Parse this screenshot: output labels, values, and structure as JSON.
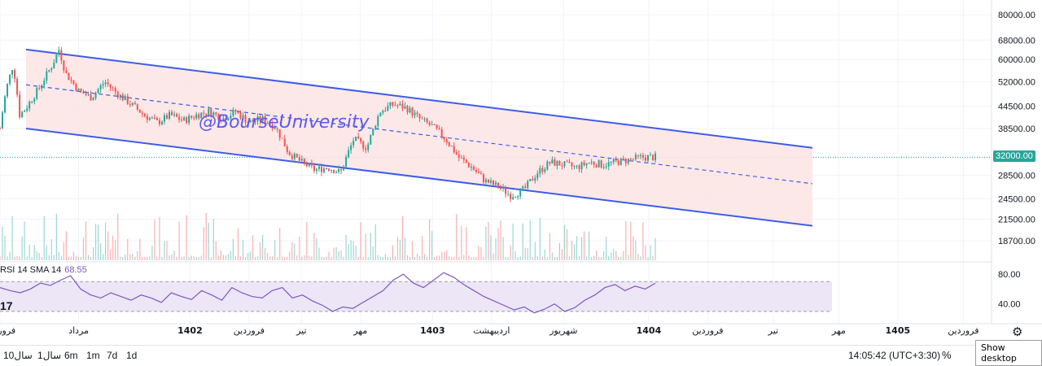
{
  "chart_data": {
    "type": "candlestick",
    "watermark": "@BourseUniversity",
    "y_ticks": [
      "80000.00",
      "68000.00",
      "60000.00",
      "52000.00",
      "44500.00",
      "38500.00",
      "32000.00",
      "28500.00",
      "24500.00",
      "21500.00",
      "18700.00"
    ],
    "y_tick_values": [
      80000,
      68000,
      60000,
      52000,
      44500,
      38500,
      32000,
      28500,
      24500,
      21500,
      18700
    ],
    "y_scale": "log",
    "ylim": [
      16500,
      88000
    ],
    "last_price": "32000.00",
    "price_path": {
      "t": [
        0,
        0.01,
        0.02,
        0.03,
        0.04,
        0.06,
        0.08,
        0.09,
        0.1,
        0.12,
        0.14,
        0.16,
        0.18,
        0.2,
        0.22,
        0.24,
        0.26,
        0.28,
        0.3,
        0.32,
        0.34,
        0.36,
        0.38,
        0.4,
        0.42,
        0.44,
        0.46,
        0.48,
        0.5,
        0.52,
        0.54,
        0.56,
        0.58,
        0.6,
        0.62,
        0.64,
        0.66,
        0.68,
        0.7,
        0.72,
        0.74,
        0.76,
        0.78,
        0.8,
        0.82,
        0.84,
        0.86,
        0.88,
        0.9,
        0.92,
        0.94,
        0.96,
        0.98,
        1.0
      ],
      "price": [
        38500,
        50000,
        58000,
        42000,
        44000,
        50000,
        58000,
        64000,
        55000,
        49000,
        47000,
        52000,
        48000,
        45000,
        42000,
        40000,
        42000,
        40500,
        42000,
        43000,
        41000,
        43000,
        40000,
        41000,
        39000,
        33000,
        31000,
        29500,
        30000,
        29000,
        36000,
        34000,
        43000,
        45000,
        44000,
        41000,
        39000,
        36000,
        32000,
        30000,
        27500,
        26500,
        25000,
        26000,
        29000,
        31000,
        30500,
        30000,
        31000,
        30500,
        31000,
        31500,
        32000,
        32000
      ]
    },
    "channel": {
      "upper": {
        "start": 64000,
        "end": 34000
      },
      "middle": {
        "start": 51000,
        "end": 27000
      },
      "lower": {
        "start": 38500,
        "end": 20600
      }
    },
    "time_labels": [
      "فروردین",
      "مرداد",
      "1402",
      "فروردین",
      "تیر",
      "مهر",
      "1403",
      "اردیبهشت",
      "شهریور",
      "1404",
      "فروردین",
      "تیر",
      "مهر",
      "1405",
      "فروردین"
    ],
    "time_label_values": [
      0,
      0.12,
      0.29,
      0.38,
      0.46,
      0.55,
      0.66,
      0.75,
      0.86,
      0.99,
      1.08,
      1.18,
      1.28,
      1.37,
      1.47
    ],
    "indicator": {
      "name": "RSI 14 SMA 14",
      "value": "68.55",
      "y_ticks": [
        "80.00",
        "40.00"
      ],
      "y_tick_values": [
        80,
        40
      ],
      "bands": [
        70,
        30
      ],
      "values": [
        62,
        58,
        55,
        60,
        68,
        65,
        72,
        78,
        60,
        52,
        48,
        55,
        50,
        45,
        52,
        48,
        42,
        55,
        50,
        46,
        58,
        52,
        45,
        62,
        55,
        50,
        48,
        58,
        62,
        48,
        52,
        44,
        38,
        30,
        36,
        34,
        42,
        50,
        58,
        72,
        80,
        68,
        62,
        72,
        82,
        76,
        66,
        58,
        50,
        44,
        38,
        32,
        36,
        28,
        33,
        40,
        30,
        35,
        45,
        52,
        62,
        66,
        58,
        64,
        60,
        68
      ]
    },
    "colors": {
      "up": "#26a69a",
      "down": "#ef5350",
      "channel": "#3d5ce8",
      "channel_fill": "#fde4e4",
      "rsi": "#7e57c2",
      "rsi_band": "#ece6f7"
    }
  },
  "toolbar": {
    "timeframes": [
      "10سال",
      "1سال",
      "6m",
      "1m",
      "7d",
      "1d"
    ],
    "clock": "14:05:42 (UTC+3:30)",
    "percent": "%",
    "tooltip": "Show desktop"
  }
}
